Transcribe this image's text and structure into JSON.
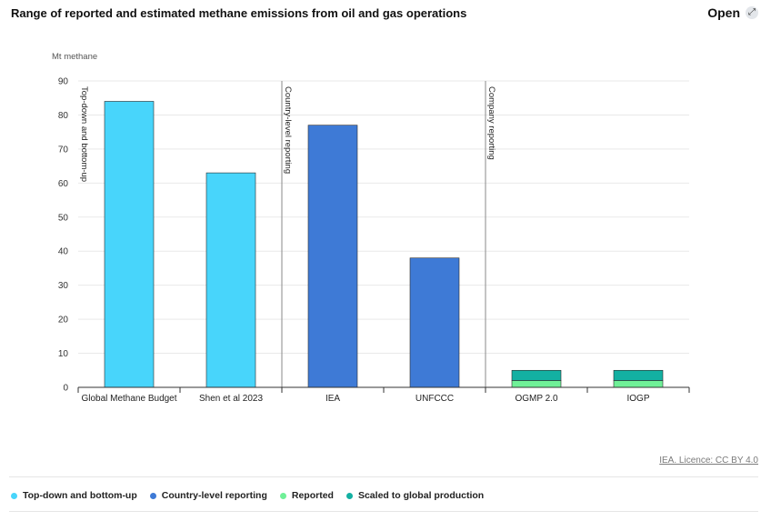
{
  "header": {
    "title": "Range of reported and estimated methane emissions from oil and gas operations",
    "open_label": "Open",
    "open_icon": "expand-arrows-icon"
  },
  "licence": "IEA. Licence: CC BY 4.0",
  "colors": {
    "top_down": "#48d5fb",
    "country": "#3e7ad6",
    "reported": "#6ff097",
    "scaled": "#13b0a2",
    "grid": "#e9e9e9",
    "axis": "#333333"
  },
  "chart_data": {
    "type": "bar",
    "title": "Range of reported and estimated methane emissions from oil and gas operations",
    "ylabel": "Mt methane",
    "xlabel": "",
    "ylim": [
      0,
      90
    ],
    "yticks": [
      0,
      10,
      20,
      30,
      40,
      50,
      60,
      70,
      80,
      90
    ],
    "categories": [
      "Global Methane Budget",
      "Shen et al 2023",
      "IEA",
      "UNFCCC",
      "OGMP 2.0",
      "IOGP"
    ],
    "groups": [
      {
        "label": "Top-down and bottom-up",
        "categories": [
          "Global Methane Budget",
          "Shen et al 2023"
        ]
      },
      {
        "label": "Country-level reporting",
        "categories": [
          "IEA",
          "UNFCCC"
        ]
      },
      {
        "label": "Company reporting",
        "categories": [
          "OGMP 2.0",
          "IOGP"
        ]
      }
    ],
    "series": [
      {
        "name": "Top-down and bottom-up",
        "values": [
          84,
          63,
          0,
          0,
          0,
          0
        ]
      },
      {
        "name": "Country-level reporting",
        "values": [
          0,
          0,
          77,
          38,
          0,
          0
        ]
      },
      {
        "name": "Reported",
        "values": [
          0,
          0,
          0,
          0,
          2,
          2
        ]
      },
      {
        "name": "Scaled to global production",
        "values": [
          0,
          0,
          0,
          0,
          3,
          3
        ]
      }
    ],
    "stacked": true,
    "grid": true,
    "legend_position": "bottom"
  },
  "legend": [
    {
      "label": "Top-down and bottom-up",
      "color": "#48d5fb"
    },
    {
      "label": "Country-level reporting",
      "color": "#3e7ad6"
    },
    {
      "label": "Reported",
      "color": "#6ff097"
    },
    {
      "label": "Scaled to global production",
      "color": "#13b0a2"
    }
  ]
}
